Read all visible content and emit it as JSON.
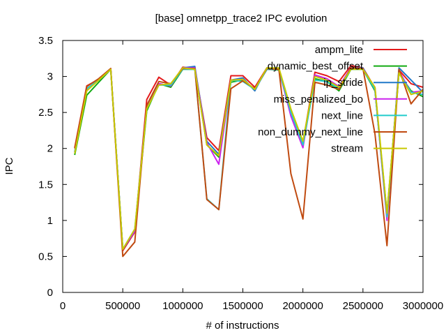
{
  "chart_data": {
    "type": "line",
    "title": "[base] omnetpp_trace2 IPC evolution",
    "xlabel": "# of instructions",
    "ylabel": "IPC",
    "xlim": [
      0,
      3000000
    ],
    "ylim": [
      0,
      3.5
    ],
    "xticks": [
      0,
      500000,
      1000000,
      1500000,
      2000000,
      2500000,
      3000000
    ],
    "xtick_labels": [
      "0",
      "500000",
      "1000000",
      "1500000",
      "2000000",
      "2500000",
      "3000000"
    ],
    "yticks": [
      0,
      0.5,
      1,
      1.5,
      2,
      2.5,
      3,
      3.5
    ],
    "ytick_labels": [
      "0",
      "0.5",
      "1",
      "1.5",
      "2",
      "2.5",
      "3",
      "3.5"
    ],
    "grid": false,
    "legend_position": "top-right",
    "x": [
      100000,
      200000,
      300000,
      400000,
      500000,
      600000,
      700000,
      800000,
      900000,
      1000000,
      1100000,
      1200000,
      1300000,
      1400000,
      1500000,
      1600000,
      1700000,
      1800000,
      1900000,
      2000000,
      2100000,
      2200000,
      2300000,
      2400000,
      2500000,
      2600000,
      2700000,
      2800000,
      2900000,
      3000000
    ],
    "series": [
      {
        "name": "ampm_lite",
        "color": "#e41a1c",
        "values": [
          2.01,
          2.87,
          2.96,
          3.11,
          0.58,
          0.84,
          2.68,
          2.99,
          2.88,
          3.13,
          3.11,
          2.15,
          1.97,
          3.01,
          3.01,
          2.85,
          3.12,
          3.11,
          2.53,
          2.08,
          3.06,
          3.01,
          2.93,
          3.15,
          3.12,
          2.84,
          1.05,
          3.09,
          2.9,
          2.85
        ]
      },
      {
        "name": "dynamic_best_offset",
        "color": "#11aa11",
        "values": [
          1.91,
          2.74,
          2.92,
          3.1,
          0.6,
          0.85,
          2.52,
          2.9,
          2.85,
          3.1,
          3.1,
          2.05,
          1.88,
          2.92,
          2.95,
          2.82,
          3.1,
          3.09,
          2.48,
          2.05,
          2.97,
          2.93,
          2.8,
          3.1,
          3.1,
          2.8,
          1.1,
          3.05,
          2.8,
          2.72
        ]
      },
      {
        "name": "ip_stride",
        "color": "#1f78c8",
        "values": [
          1.95,
          2.83,
          2.95,
          3.1,
          0.6,
          0.85,
          2.58,
          2.9,
          2.87,
          3.12,
          3.14,
          2.1,
          1.92,
          2.95,
          2.98,
          2.8,
          3.12,
          3.1,
          2.5,
          2.05,
          3.02,
          2.96,
          2.85,
          3.12,
          3.12,
          2.82,
          1.03,
          3.12,
          2.95,
          2.78
        ]
      },
      {
        "name": "miss_penalized_bo",
        "color": "#cc22ee",
        "values": [
          1.95,
          2.83,
          2.95,
          3.1,
          0.6,
          0.85,
          2.58,
          2.9,
          2.87,
          3.12,
          3.12,
          2.08,
          1.78,
          2.95,
          2.96,
          2.82,
          3.1,
          3.1,
          2.45,
          2.01,
          3.02,
          2.97,
          2.86,
          3.12,
          3.11,
          2.82,
          1.0,
          3.08,
          2.78,
          2.8
        ]
      },
      {
        "name": "next_line",
        "color": "#22cccc",
        "values": [
          1.95,
          2.83,
          2.95,
          3.1,
          0.6,
          0.88,
          2.55,
          2.88,
          2.88,
          3.1,
          3.1,
          1.3,
          1.15,
          2.95,
          2.93,
          2.82,
          3.1,
          3.1,
          2.5,
          2.05,
          2.95,
          2.93,
          2.83,
          3.1,
          3.1,
          2.82,
          1.05,
          3.05,
          2.78,
          2.75
        ]
      },
      {
        "name": "non_dummy_next_line",
        "color": "#c04a10",
        "values": [
          2.0,
          2.86,
          2.97,
          3.11,
          0.5,
          0.7,
          2.6,
          2.93,
          2.9,
          3.11,
          3.11,
          1.29,
          1.15,
          2.83,
          2.94,
          2.83,
          3.11,
          3.1,
          1.65,
          1.02,
          2.92,
          2.88,
          2.82,
          3.12,
          3.11,
          2.2,
          0.65,
          3.1,
          2.62,
          2.82
        ]
      },
      {
        "name": "stream",
        "color": "#c8c800",
        "values": [
          1.93,
          2.8,
          2.95,
          3.1,
          0.6,
          0.88,
          2.55,
          2.88,
          2.9,
          3.12,
          3.1,
          2.05,
          1.9,
          2.95,
          2.96,
          2.82,
          3.12,
          3.12,
          2.55,
          2.1,
          3.0,
          2.95,
          2.85,
          3.1,
          3.1,
          2.85,
          1.1,
          3.05,
          2.75,
          2.8
        ]
      }
    ]
  }
}
